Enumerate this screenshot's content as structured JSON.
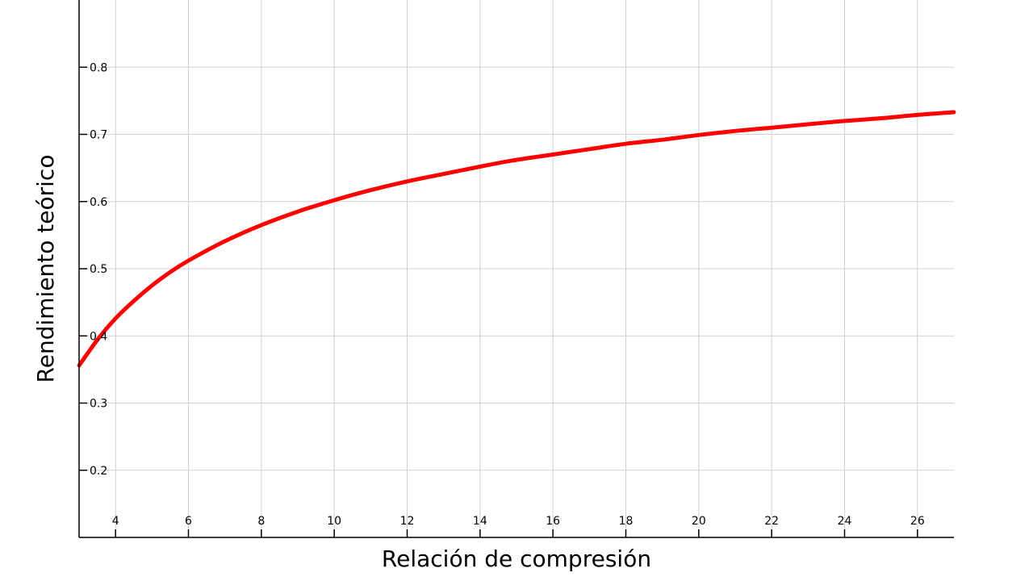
{
  "chart_data": {
    "type": "line",
    "title": "",
    "xlabel": "Relación de compresión",
    "ylabel": "Rendimiento teórico",
    "xlim": [
      3,
      27
    ],
    "ylim": [
      0.1,
      0.9
    ],
    "grid": true,
    "x_ticks": [
      4,
      6,
      8,
      10,
      12,
      14,
      16,
      18,
      20,
      22,
      24,
      26
    ],
    "y_ticks": [
      0.2,
      0.3,
      0.4,
      0.5,
      0.6,
      0.7,
      0.8
    ],
    "x_tick_labels": [
      "4",
      "6",
      "8",
      "10",
      "12",
      "14",
      "16",
      "18",
      "20",
      "22",
      "24",
      "26"
    ],
    "y_tick_labels": [
      "0.2",
      "0.3",
      "0.4",
      "0.5",
      "0.6",
      "0.7",
      "0.8"
    ],
    "colors": {
      "line": "#ff0000",
      "grid": "#d0d0d0",
      "axis": "#000000"
    },
    "series": [
      {
        "x": [
          3,
          3.5,
          4,
          4.5,
          5,
          5.5,
          6,
          7,
          8,
          9,
          10,
          11,
          12,
          13,
          14,
          15,
          16,
          17,
          18,
          19,
          20,
          21,
          22,
          23,
          24,
          25,
          26,
          27
        ],
        "y": [
          0.356,
          0.394,
          0.426,
          0.452,
          0.475,
          0.495,
          0.512,
          0.541,
          0.565,
          0.585,
          0.602,
          0.617,
          0.63,
          0.641,
          0.652,
          0.662,
          0.67,
          0.678,
          0.686,
          0.692,
          0.699,
          0.705,
          0.71,
          0.715,
          0.72,
          0.724,
          0.729,
          0.733
        ]
      }
    ]
  }
}
